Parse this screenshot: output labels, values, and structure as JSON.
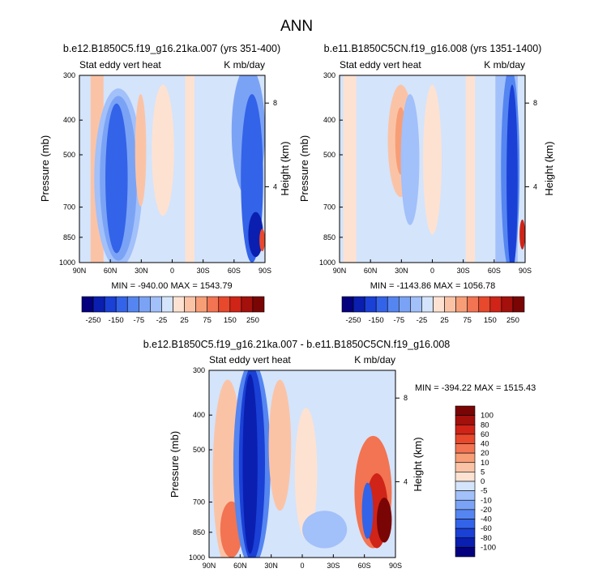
{
  "main_title": "ANN",
  "chart_data": [
    {
      "type": "heatmap",
      "title": "b.e12.B1850C5.f19_g16.21ka.007 (yrs 351-400)",
      "left_label": "Stat eddy vert heat",
      "right_label": "K mb/day",
      "ylabel": "Pressure (mb)",
      "ylabel_right": "Height (km)",
      "x_ticks": [
        "90N",
        "60N",
        "30N",
        "0",
        "30S",
        "60S",
        "90S"
      ],
      "y_ticks": [
        "300",
        "400",
        "500",
        "700",
        "850",
        "1000"
      ],
      "y_tick_values": [
        300,
        400,
        500,
        700,
        850,
        1000
      ],
      "height_ticks": [
        "8",
        "4"
      ],
      "ylim": [
        300,
        1000
      ],
      "xlim": [
        "90N",
        "90S"
      ],
      "stats": "MIN = -940.00   MAX = 1543.79",
      "min": -940.0,
      "max": 1543.79
    },
    {
      "type": "heatmap",
      "title": "b.e11.B1850C5CN.f19_g16.008 (yrs 1351-1400)",
      "left_label": "Stat eddy vert heat",
      "right_label": "K mb/day",
      "ylabel": "Pressure (mb)",
      "ylabel_right": "Height (km)",
      "x_ticks": [
        "90N",
        "60N",
        "30N",
        "0",
        "30S",
        "60S",
        "90S"
      ],
      "y_ticks": [
        "300",
        "400",
        "500",
        "700",
        "850",
        "1000"
      ],
      "y_tick_values": [
        300,
        400,
        500,
        700,
        850,
        1000
      ],
      "height_ticks": [
        "8",
        "4"
      ],
      "ylim": [
        300,
        1000
      ],
      "xlim": [
        "90N",
        "90S"
      ],
      "stats": "MIN = -1143.86   MAX = 1056.78",
      "min": -1143.86,
      "max": 1056.78
    },
    {
      "type": "heatmap",
      "title": "b.e12.B1850C5.f19_g16.21ka.007 - b.e11.B1850C5CN.f19_g16.008",
      "left_label": "Stat eddy vert heat",
      "right_label": "K mb/day",
      "ylabel": "Pressure (mb)",
      "ylabel_right": "Height (km)",
      "x_ticks": [
        "90N",
        "60N",
        "30N",
        "0",
        "30S",
        "60S",
        "90S"
      ],
      "y_ticks": [
        "300",
        "400",
        "500",
        "700",
        "850",
        "1000"
      ],
      "y_tick_values": [
        300,
        400,
        500,
        700,
        850,
        1000
      ],
      "height_ticks": [
        "8",
        "4"
      ],
      "ylim": [
        300,
        1000
      ],
      "xlim": [
        "90N",
        "90S"
      ],
      "stats": "MIN = -394.22   MAX = 1515.43",
      "min": -394.22,
      "max": 1515.43
    }
  ],
  "colorbar_top": {
    "labels": [
      "-250",
      "-150",
      "-75",
      "-25",
      "25",
      "75",
      "150",
      "250"
    ],
    "levels": [
      -250,
      -200,
      -150,
      -100,
      -75,
      -50,
      -25,
      0,
      25,
      50,
      75,
      100,
      150,
      200,
      250
    ],
    "colors": [
      "#05007d",
      "#0a1fb0",
      "#1a40d6",
      "#3363e8",
      "#5585f0",
      "#7ba3f5",
      "#a2c0fa",
      "#d4e4fb",
      "#fde2d2",
      "#fbc3a6",
      "#f79e77",
      "#f27452",
      "#e8482c",
      "#cf2417",
      "#a4100c",
      "#7a0505"
    ]
  },
  "colorbar_diff": {
    "labels": [
      "100",
      "80",
      "60",
      "40",
      "20",
      "10",
      "5",
      "0",
      "-5",
      "-10",
      "-20",
      "-40",
      "-60",
      "-80",
      "-100"
    ],
    "colors": [
      "#7a0505",
      "#a4100c",
      "#cf2417",
      "#e8482c",
      "#f27452",
      "#f79e77",
      "#fbc3a6",
      "#fde2d2",
      "#d4e4fb",
      "#a2c0fa",
      "#7ba3f5",
      "#5585f0",
      "#3363e8",
      "#1a40d6",
      "#0a1fb0",
      "#05007d"
    ]
  },
  "palette": {
    "pale_blue": "#d4e4fb",
    "pale_red": "#fde2d2",
    "light_blue": "#a2c0fa",
    "light_red": "#fbc3a6"
  }
}
